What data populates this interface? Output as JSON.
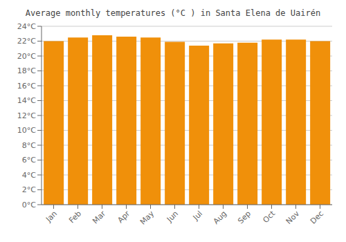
{
  "chart_data": {
    "type": "bar",
    "title": "Average monthly temperatures (°C ) in Santa Elena de Uairén",
    "categories": [
      "Jan",
      "Feb",
      "Mar",
      "Apr",
      "May",
      "Jun",
      "Jul",
      "Aug",
      "Sep",
      "Oct",
      "Nov",
      "Dec"
    ],
    "values": [
      22.0,
      22.5,
      22.8,
      22.6,
      22.5,
      21.9,
      21.4,
      21.7,
      21.8,
      22.2,
      22.2,
      22.0
    ],
    "color": "#F0900A",
    "ylim": [
      0,
      24
    ],
    "yticks": [
      {
        "value": 0,
        "label": "0°C"
      },
      {
        "value": 2,
        "label": "2°C"
      },
      {
        "value": 4,
        "label": "4°C"
      },
      {
        "value": 6,
        "label": "6°C"
      },
      {
        "value": 8,
        "label": "8°C"
      },
      {
        "value": 10,
        "label": "10°C"
      },
      {
        "value": 12,
        "label": "12°C"
      },
      {
        "value": 14,
        "label": "14°C"
      },
      {
        "value": 16,
        "label": "16°C"
      },
      {
        "value": 18,
        "label": "18°C"
      },
      {
        "value": 20,
        "label": "20°C"
      },
      {
        "value": 22,
        "label": "22°C"
      },
      {
        "value": 24,
        "label": "24°C"
      }
    ],
    "grid": true
  }
}
